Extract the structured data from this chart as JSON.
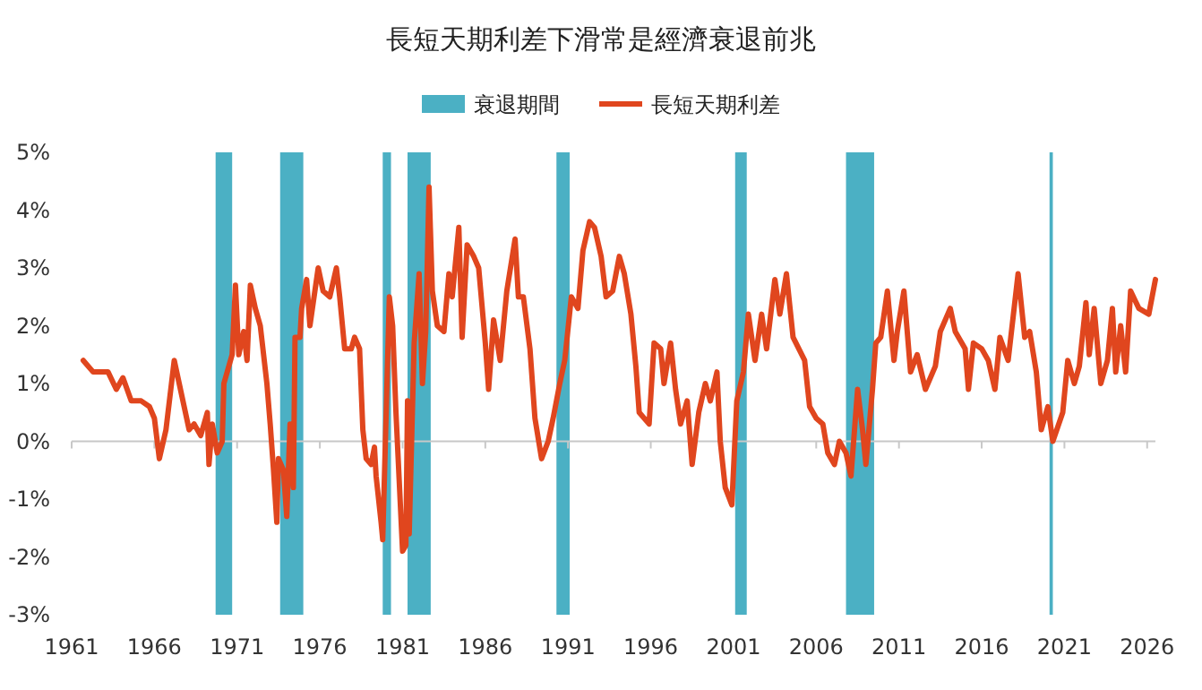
{
  "chart_data": {
    "type": "line",
    "title": "長短天期利差下滑常是經濟衰退前兆",
    "legend": "top",
    "ref_lines": [
      {
        "axis": "y",
        "value": 0,
        "color": "#c8c8c8"
      }
    ],
    "xlim": [
      1961,
      2026.5
    ],
    "xticks": [
      1961,
      1966,
      1971,
      1976,
      1981,
      1986,
      1991,
      1996,
      2001,
      2006,
      2011,
      2016,
      2021,
      2026
    ],
    "ylim": [
      -3,
      5
    ],
    "yticks": [
      {
        "value": -3,
        "label": "-3%"
      },
      {
        "value": -2,
        "label": "-2%"
      },
      {
        "value": -1,
        "label": "-1%"
      },
      {
        "value": 0,
        "label": "0%"
      },
      {
        "value": 1,
        "label": "1%"
      },
      {
        "value": 2,
        "label": "2%"
      },
      {
        "value": 3,
        "label": "3%"
      },
      {
        "value": 4,
        "label": "4%"
      },
      {
        "value": 5,
        "label": "5%"
      }
    ],
    "bands": [
      {
        "axis": "x",
        "from": 1969.7,
        "to": 1970.7,
        "label": "衰退期間",
        "color": "#4bb0c4"
      },
      {
        "axis": "x",
        "from": 1973.6,
        "to": 1975.0,
        "color": "#4bb0c4"
      },
      {
        "axis": "x",
        "from": 1979.8,
        "to": 1980.3,
        "color": "#4bb0c4"
      },
      {
        "axis": "x",
        "from": 1981.3,
        "to": 1982.7,
        "color": "#4bb0c4"
      },
      {
        "axis": "x",
        "from": 1990.3,
        "to": 1991.1,
        "color": "#4bb0c4"
      },
      {
        "axis": "x",
        "from": 2001.1,
        "to": 2001.8,
        "color": "#4bb0c4"
      },
      {
        "axis": "x",
        "from": 2007.8,
        "to": 2009.5,
        "color": "#4bb0c4"
      },
      {
        "axis": "x",
        "from": 2020.1,
        "to": 2020.3,
        "color": "#4bb0c4"
      }
    ],
    "series": [
      {
        "name": "長短天期利差",
        "color": "#e0461e",
        "x": [
          1961.7,
          1962.3,
          1963.2,
          1963.7,
          1964.1,
          1964.6,
          1965.2,
          1965.7,
          1966.0,
          1966.3,
          1966.7,
          1967.2,
          1967.5,
          1968.1,
          1968.4,
          1968.8,
          1969.2,
          1969.3,
          1969.5,
          1969.8,
          1970.1,
          1970.2,
          1970.5,
          1970.7,
          1970.9,
          1971.1,
          1971.4,
          1971.6,
          1971.8,
          1972.1,
          1972.4,
          1972.8,
          1973.0,
          1973.2,
          1973.4,
          1973.5,
          1973.8,
          1974.0,
          1974.2,
          1974.4,
          1974.5,
          1974.8,
          1974.9,
          1975.2,
          1975.4,
          1975.7,
          1975.9,
          1976.2,
          1976.6,
          1977.0,
          1977.2,
          1977.5,
          1977.9,
          1978.1,
          1978.4,
          1978.6,
          1978.8,
          1979.1,
          1979.3,
          1979.4,
          1979.7,
          1979.8,
          1980.2,
          1980.4,
          1980.6,
          1981.0,
          1981.2,
          1981.3,
          1981.4,
          1981.7,
          1982.0,
          1982.2,
          1982.4,
          1982.6,
          1982.8,
          1983.1,
          1983.5,
          1983.8,
          1984.0,
          1984.4,
          1984.6,
          1984.9,
          1985.3,
          1985.6,
          1986.0,
          1986.2,
          1986.5,
          1986.9,
          1987.3,
          1987.8,
          1988.0,
          1988.3,
          1988.7,
          1989.0,
          1989.4,
          1989.8,
          1990.1,
          1990.5,
          1990.8,
          1991.2,
          1991.6,
          1991.9,
          1992.3,
          1992.6,
          1993.0,
          1993.3,
          1993.7,
          1994.1,
          1994.4,
          1994.8,
          1995.1,
          1995.3,
          1995.9,
          1996.2,
          1996.6,
          1996.8,
          1997.2,
          1997.5,
          1997.8,
          1998.2,
          1998.5,
          1998.9,
          1999.3,
          1999.6,
          2000.0,
          2000.2,
          2000.5,
          2000.9,
          2001.2,
          2001.6,
          2001.9,
          2002.3,
          2002.7,
          2003.0,
          2003.5,
          2003.8,
          2004.2,
          2004.6,
          2005.3,
          2005.6,
          2006.0,
          2006.4,
          2006.7,
          2007.1,
          2007.4,
          2007.8,
          2008.1,
          2008.5,
          2008.8,
          2009.0,
          2009.4,
          2009.6,
          2009.9,
          2010.3,
          2010.7,
          2010.9,
          2011.3,
          2011.7,
          2012.1,
          2012.6,
          2013.2,
          2013.5,
          2014.1,
          2014.4,
          2015.0,
          2015.2,
          2015.5,
          2016.0,
          2016.4,
          2016.8,
          2017.1,
          2017.6,
          2018.2,
          2018.6,
          2018.9,
          2019.3,
          2019.6,
          2020.0,
          2020.3,
          2020.9,
          2021.2,
          2021.6,
          2021.9,
          2022.3,
          2022.5,
          2022.8,
          2023.2,
          2023.6,
          2023.9,
          2024.1,
          2024.4,
          2024.7,
          2025.0,
          2025.5,
          2026.1,
          2026.5
        ],
        "values": [
          1.4,
          1.2,
          1.2,
          0.9,
          1.1,
          0.7,
          0.7,
          0.6,
          0.4,
          -0.3,
          0.2,
          1.4,
          1.0,
          0.2,
          0.3,
          0.1,
          0.5,
          -0.4,
          0.3,
          -0.2,
          0.0,
          1.0,
          1.3,
          1.5,
          2.7,
          1.5,
          1.9,
          1.4,
          2.7,
          2.3,
          2.0,
          1.0,
          0.3,
          -0.5,
          -1.4,
          -0.3,
          -0.5,
          -1.3,
          0.3,
          -0.8,
          1.8,
          1.8,
          2.3,
          2.8,
          2.0,
          2.6,
          3.0,
          2.6,
          2.5,
          3.0,
          2.5,
          1.6,
          1.6,
          1.8,
          1.6,
          0.2,
          -0.3,
          -0.4,
          -0.1,
          -0.6,
          -1.4,
          -1.7,
          2.5,
          2.0,
          0.5,
          -1.9,
          -1.8,
          0.7,
          -1.6,
          1.7,
          2.9,
          1.0,
          1.9,
          4.4,
          2.6,
          2.0,
          1.9,
          2.9,
          2.5,
          3.7,
          1.8,
          3.4,
          3.2,
          3.0,
          1.7,
          0.9,
          2.1,
          1.4,
          2.6,
          3.5,
          2.5,
          2.5,
          1.6,
          0.4,
          -0.3,
          0.0,
          0.4,
          1.0,
          1.4,
          2.5,
          2.3,
          3.3,
          3.8,
          3.7,
          3.2,
          2.5,
          2.6,
          3.2,
          2.9,
          2.2,
          1.3,
          0.5,
          0.3,
          1.7,
          1.6,
          1.0,
          1.7,
          0.9,
          0.3,
          0.7,
          -0.4,
          0.5,
          1.0,
          0.7,
          1.2,
          0.0,
          -0.8,
          -1.1,
          0.7,
          1.2,
          2.2,
          1.4,
          2.2,
          1.6,
          2.8,
          2.2,
          2.9,
          1.8,
          1.4,
          0.6,
          0.4,
          0.3,
          -0.2,
          -0.4,
          0.0,
          -0.2,
          -0.6,
          0.9,
          0.2,
          -0.4,
          0.9,
          1.7,
          1.8,
          2.6,
          1.4,
          1.9,
          2.6,
          1.2,
          1.5,
          0.9,
          1.3,
          1.9,
          2.3,
          1.9,
          1.6,
          0.9,
          1.7,
          1.6,
          1.4,
          0.9,
          1.8,
          1.4,
          2.9,
          1.8,
          1.9,
          1.2,
          0.2,
          0.6,
          0.0,
          0.5,
          1.4,
          1.0,
          1.3,
          2.4,
          1.5,
          2.3,
          1.0,
          1.4,
          2.3,
          1.2,
          2.0,
          1.2,
          2.6,
          2.3,
          2.2,
          2.8
        ]
      }
    ]
  }
}
